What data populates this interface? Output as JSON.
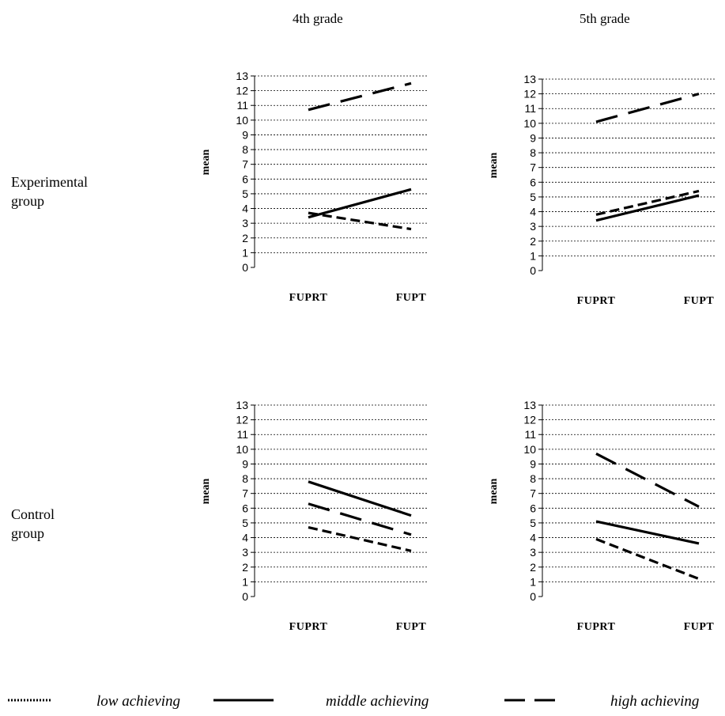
{
  "columns": [
    "4th grade",
    "5th grade"
  ],
  "rows": [
    "Experimental\ngroup",
    "Control\ngroup"
  ],
  "legend": [
    {
      "label": "low achieving",
      "dash": "dotted"
    },
    {
      "label": "middle achieving",
      "dash": "solid"
    },
    {
      "label": "high achieving",
      "dash": "dashed"
    }
  ],
  "chart_data": [
    {
      "type": "line",
      "row": "Experimental group",
      "column": "4th grade",
      "ylabel": "mean",
      "ylim": [
        0,
        13
      ],
      "grid": true,
      "categories": [
        "FUPRT",
        "FUPT"
      ],
      "series": [
        {
          "name": "low achieving",
          "style": "dashed-short",
          "values": [
            3.7,
            2.6
          ]
        },
        {
          "name": "middle achieving",
          "style": "solid",
          "values": [
            3.4,
            5.3
          ]
        },
        {
          "name": "high achieving",
          "style": "dashed-long",
          "values": [
            10.7,
            12.5
          ]
        }
      ]
    },
    {
      "type": "line",
      "row": "Experimental group",
      "column": "5th grade",
      "ylabel": "mean",
      "ylim": [
        0,
        13
      ],
      "grid": true,
      "categories": [
        "FUPRT",
        "FUPT"
      ],
      "series": [
        {
          "name": "low achieving",
          "style": "dashed-short",
          "values": [
            3.8,
            5.4
          ]
        },
        {
          "name": "middle achieving",
          "style": "solid",
          "values": [
            3.4,
            5.1
          ]
        },
        {
          "name": "high achieving",
          "style": "dashed-long",
          "values": [
            10.1,
            12.0
          ]
        }
      ]
    },
    {
      "type": "line",
      "row": "Control group",
      "column": "4th grade",
      "ylabel": "mean",
      "ylim": [
        0,
        13
      ],
      "grid": true,
      "categories": [
        "FUPRT",
        "FUPT"
      ],
      "series": [
        {
          "name": "low achieving",
          "style": "dashed-short",
          "values": [
            4.7,
            3.1
          ]
        },
        {
          "name": "middle achieving",
          "style": "solid",
          "values": [
            7.8,
            5.5
          ]
        },
        {
          "name": "high achieving",
          "style": "dashed-long",
          "values": [
            6.3,
            4.2
          ]
        }
      ]
    },
    {
      "type": "line",
      "row": "Control group",
      "column": "5th grade",
      "ylabel": "mean",
      "ylim": [
        0,
        13
      ],
      "grid": true,
      "categories": [
        "FUPRT",
        "FUPT"
      ],
      "series": [
        {
          "name": "low achieving",
          "style": "dashed-short",
          "values": [
            3.9,
            1.2
          ]
        },
        {
          "name": "middle achieving",
          "style": "solid",
          "values": [
            5.1,
            3.6
          ]
        },
        {
          "name": "high achieving",
          "style": "dashed-long",
          "values": [
            9.7,
            6.1
          ]
        }
      ]
    }
  ]
}
